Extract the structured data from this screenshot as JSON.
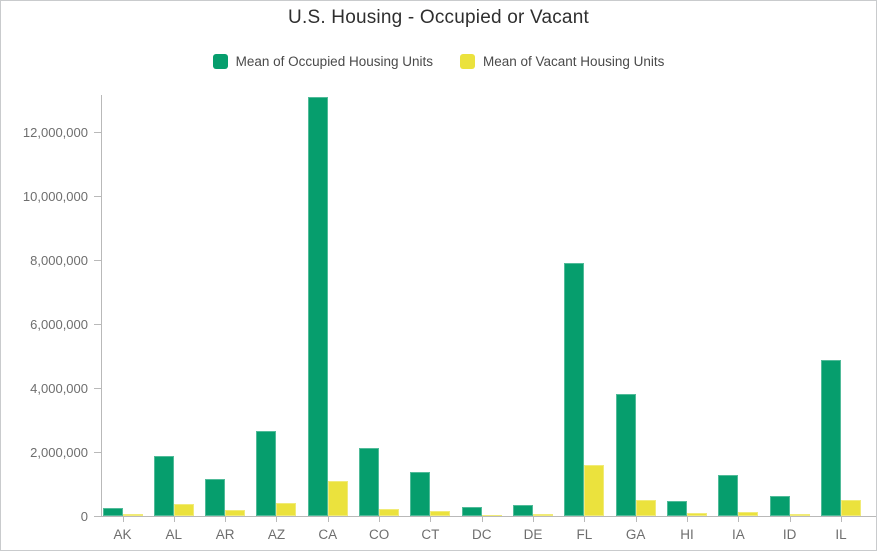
{
  "title": "U.S. Housing - Occupied or Vacant",
  "legend": {
    "items": [
      {
        "label": "Mean of Occupied Housing Units",
        "color": "#069e6d"
      },
      {
        "label": "Mean of Vacant Housing Units",
        "color": "#ebe23d"
      }
    ]
  },
  "colors": {
    "occupied_green": "#069e6d",
    "vacant_yellow": "#ebe23d",
    "axis_gray": "#b9b9b9",
    "tick_label_gray": "#6e6e6e",
    "title_dark": "#2f2f2f",
    "frame_border": "#c9cbcd",
    "background": "#ffffff"
  },
  "chart_data": {
    "type": "bar",
    "title": "U.S. Housing - Occupied or Vacant",
    "xlabel": "",
    "ylabel": "",
    "categories": [
      "AK",
      "AL",
      "AR",
      "AZ",
      "CA",
      "CO",
      "CT",
      "DC",
      "DE",
      "FL",
      "GA",
      "HI",
      "IA",
      "ID",
      "IL"
    ],
    "series": [
      {
        "name": "Mean of Occupied Housing Units",
        "color": "#069e6d",
        "values": [
          250000,
          1880000,
          1150000,
          2650000,
          13100000,
          2110000,
          1380000,
          280000,
          340000,
          7900000,
          3810000,
          470000,
          1270000,
          630000,
          4880000
        ]
      },
      {
        "name": "Mean of Vacant Housing Units",
        "color": "#ebe23d",
        "values": [
          70000,
          390000,
          190000,
          400000,
          1100000,
          210000,
          160000,
          40000,
          60000,
          1590000,
          490000,
          90000,
          130000,
          70000,
          490000
        ]
      }
    ],
    "ylim": [
      0,
      13200000
    ],
    "yticks": [
      0,
      2000000,
      4000000,
      6000000,
      8000000,
      10000000,
      12000000
    ],
    "ytick_labels": [
      "0",
      "2,000,000",
      "4,000,000",
      "6,000,000",
      "8,000,000",
      "10,000,000",
      "12,000,000"
    ],
    "grid": false,
    "legend_position": "top"
  }
}
